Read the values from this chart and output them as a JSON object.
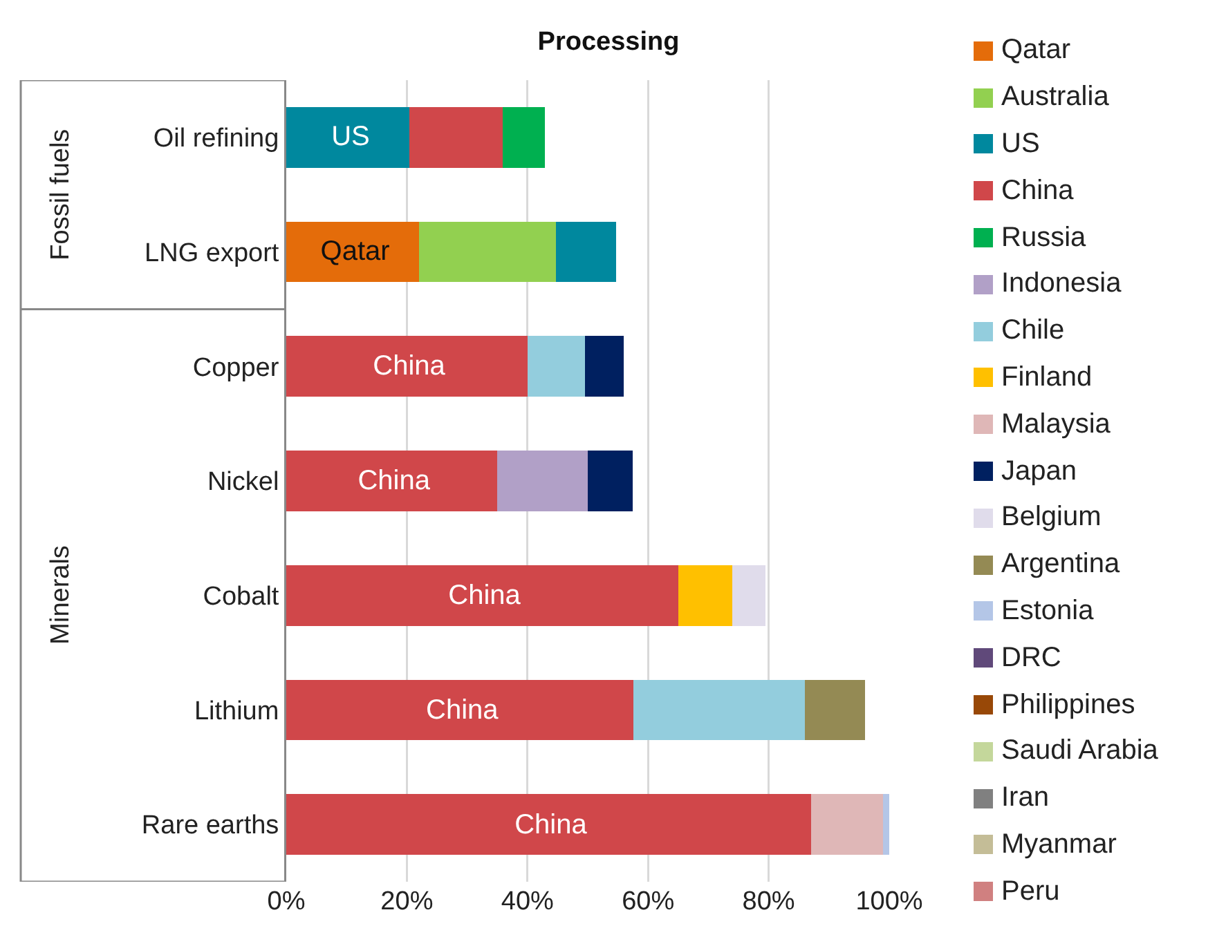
{
  "chart_data": {
    "type": "bar",
    "orientation": "horizontal",
    "stacked": true,
    "title": "Processing",
    "categories": [
      "Oil refining",
      "LNG export",
      "Copper",
      "Nickel",
      "Cobalt",
      "Lithium",
      "Rare earths"
    ],
    "series": [
      {
        "name": "Qatar",
        "color": "#e46c0a",
        "values": [
          null,
          22,
          null,
          null,
          null,
          null,
          null
        ]
      },
      {
        "name": "Australia",
        "color": "#92d050",
        "values": [
          null,
          22.7,
          null,
          null,
          null,
          null,
          null
        ]
      },
      {
        "name": "US",
        "color": "#00889e",
        "values": [
          20.4,
          10,
          null,
          null,
          null,
          null,
          null
        ]
      },
      {
        "name": "China",
        "color": "#d0474a",
        "values": [
          15.5,
          null,
          40,
          35,
          65,
          57.6,
          87
        ]
      },
      {
        "name": "Russia",
        "color": "#00b050",
        "values": [
          7,
          null,
          null,
          null,
          null,
          null,
          null
        ]
      },
      {
        "name": "Indonesia",
        "color": "#b1a0c7",
        "values": [
          null,
          null,
          null,
          15,
          null,
          null,
          null
        ]
      },
      {
        "name": "Chile",
        "color": "#93cddd",
        "values": [
          null,
          null,
          9.5,
          null,
          null,
          28.4,
          null
        ]
      },
      {
        "name": "Finland",
        "color": "#ffc000",
        "values": [
          null,
          null,
          null,
          null,
          9,
          null,
          null
        ]
      },
      {
        "name": "Malaysia",
        "color": "#dfb7b7",
        "values": [
          null,
          null,
          null,
          null,
          null,
          null,
          12
        ]
      },
      {
        "name": "Japan",
        "color": "#002060",
        "values": [
          null,
          null,
          6.5,
          7.5,
          null,
          null,
          null
        ]
      },
      {
        "name": "Belgium",
        "color": "#e0dceb",
        "values": [
          null,
          null,
          null,
          null,
          5.5,
          null,
          null
        ]
      },
      {
        "name": "Argentina",
        "color": "#948a54",
        "values": [
          null,
          null,
          null,
          null,
          null,
          10,
          null
        ]
      },
      {
        "name": "Estonia",
        "color": "#b4c6e7",
        "values": [
          null,
          null,
          null,
          null,
          null,
          null,
          1
        ]
      },
      {
        "name": "DRC",
        "color": "#60497a",
        "values": [
          null,
          null,
          null,
          null,
          null,
          null,
          null
        ]
      },
      {
        "name": "Philippines",
        "color": "#984807",
        "values": [
          null,
          null,
          null,
          null,
          null,
          null,
          null
        ]
      },
      {
        "name": "Saudi Arabia",
        "color": "#c4d79b",
        "values": [
          null,
          null,
          null,
          null,
          null,
          null,
          null
        ]
      },
      {
        "name": "Iran",
        "color": "#808080",
        "values": [
          null,
          null,
          null,
          null,
          null,
          null,
          null
        ]
      },
      {
        "name": "Myanmar",
        "color": "#c4bd97",
        "values": [
          null,
          null,
          null,
          null,
          null,
          null,
          null
        ]
      },
      {
        "name": "Peru",
        "color": "#d08080",
        "values": [
          null,
          null,
          null,
          null,
          null,
          null,
          null
        ]
      }
    ],
    "xlim": [
      0,
      100
    ],
    "xticks": [
      {
        "value": 0,
        "label": "0%"
      },
      {
        "value": 20,
        "label": "20%"
      },
      {
        "value": 40,
        "label": "40%"
      },
      {
        "value": 60,
        "label": "60%"
      },
      {
        "value": 80,
        "label": "80%"
      },
      {
        "value": 100,
        "label": "100%"
      }
    ],
    "grid": "x",
    "legend": "right",
    "annotations": [
      "US",
      "Qatar",
      "China",
      "China",
      "China",
      "China",
      "China",
      "Fossil fuels",
      "Minerals"
    ]
  }
}
